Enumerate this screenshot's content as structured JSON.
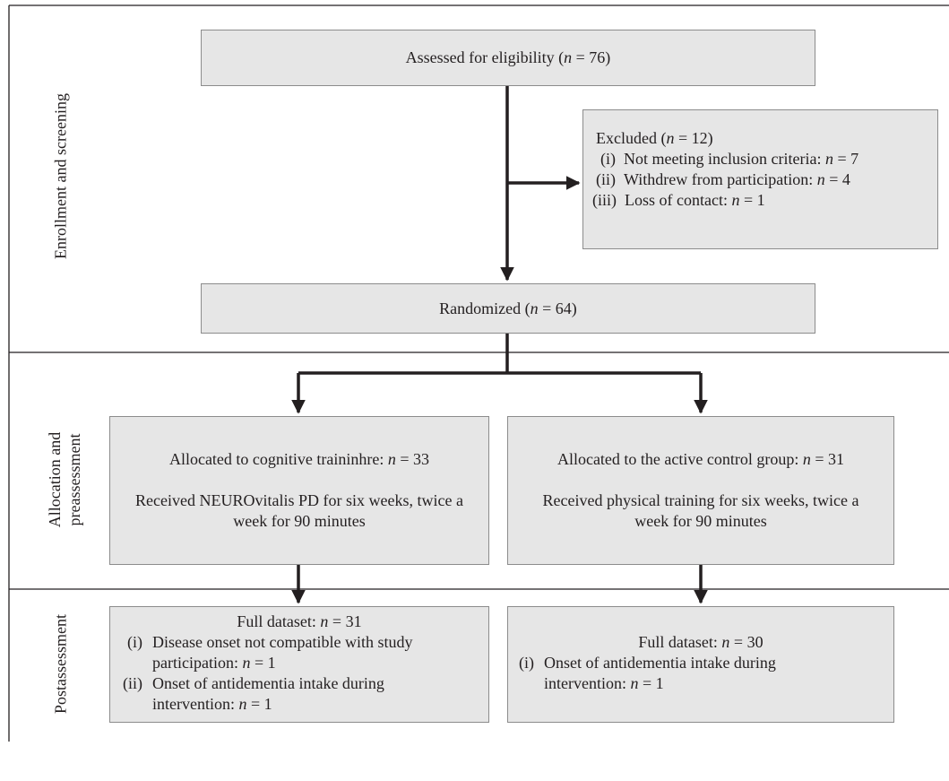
{
  "phases": {
    "enrollment": "Enrollment and screening",
    "allocation_line1": "Allocation and",
    "allocation_line2": "preassessment",
    "post": "Postassessment"
  },
  "n_symbol": "n",
  "assessed": {
    "prefix": "Assessed for eligibility (",
    "n_eq": " = 76)"
  },
  "excluded": {
    "header_prefix": "Excluded (",
    "header_n_eq": " = 12)",
    "items": [
      {
        "num": "(i)",
        "text": "Not meeting inclusion criteria: ",
        "n_eq": " = 7"
      },
      {
        "num": "(ii)",
        "text": "Withdrew from participation: ",
        "n_eq": " = 4"
      },
      {
        "num": "(iii)",
        "text": "Loss of contact: ",
        "n_eq": " = 1"
      }
    ]
  },
  "randomized": {
    "prefix": "Randomized (",
    "n_eq": " = 64)"
  },
  "alloc_left": {
    "line1_prefix": "Allocated to cognitive traininhre: ",
    "line1_n_eq": " = 33",
    "line2": "Received NEUROvitalis PD for six weeks, twice a",
    "line3": "week for 90 minutes"
  },
  "alloc_right": {
    "line1_prefix": "Allocated to the active control group: ",
    "line1_n_eq": " = 31",
    "line2": "Received physical training for six weeks, twice a",
    "line3": "week for 90 minutes"
  },
  "post_left": {
    "header_prefix": "Full dataset: ",
    "header_n_eq": " = 31",
    "items": [
      {
        "num": "(i)",
        "line1": "Disease onset not compatible with study",
        "line2_prefix": "participation: ",
        "n_eq": " = 1"
      },
      {
        "num": "(ii)",
        "line1": "Onset of antidementia intake during",
        "line2_prefix": "intervention: ",
        "n_eq": " = 1"
      }
    ]
  },
  "post_right": {
    "header_prefix": "Full dataset: ",
    "header_n_eq": " = 30",
    "items": [
      {
        "num": "(i)",
        "line1": "Onset of antidementia intake during",
        "line2_prefix": "intervention: ",
        "n_eq": " = 1"
      }
    ]
  }
}
